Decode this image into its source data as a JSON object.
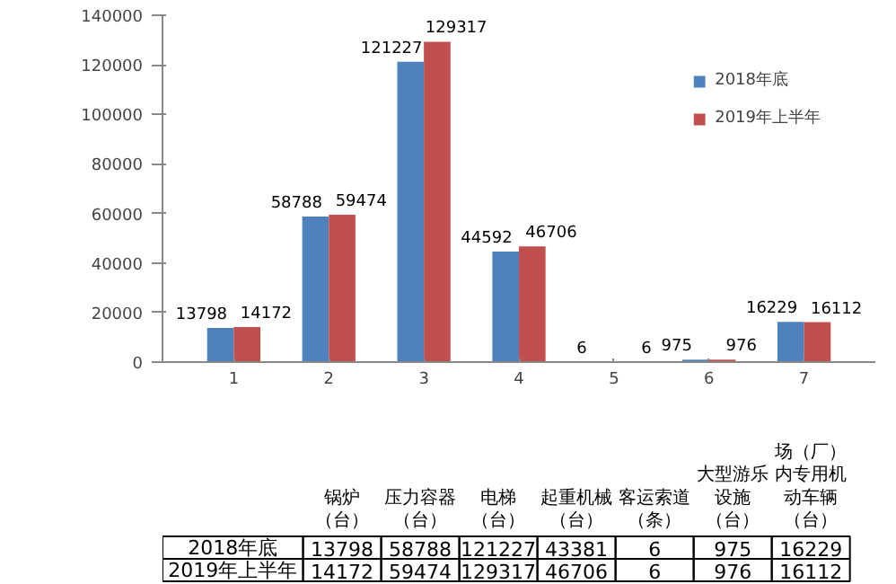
{
  "chart_data": [
    {
      "type": "bar",
      "categories": [
        "1",
        "2",
        "3",
        "4",
        "5",
        "6",
        "7"
      ],
      "ylim": [
        0,
        140000
      ],
      "yticks": [
        0,
        20000,
        40000,
        60000,
        80000,
        100000,
        120000,
        140000
      ],
      "legend": "top right",
      "series": [
        {
          "name": "2018年底",
          "color": "#4f81bd",
          "values": [
            13798,
            58788,
            121227,
            44592,
            6,
            975,
            16229
          ],
          "value_labels": [
            "13798",
            "58788",
            "121227",
            "44592",
            "6",
            "975",
            "16229"
          ]
        },
        {
          "name": "2019年上半年",
          "color": "#c0504d",
          "values": [
            14172,
            59474,
            129317,
            46706,
            6,
            976,
            16112
          ],
          "value_labels": [
            "14172",
            "59474",
            "129317",
            "46706",
            "6",
            "976",
            "16112"
          ]
        }
      ]
    },
    {
      "type": "other",
      "data_labels": true,
      "categories": [
        "锅炉（台）",
        "压力容器（台）",
        "电梯（台）",
        "起重机械（台）",
        "客运索道（条）",
        "大型游乐设施（台）",
        "场（厂）内专用机动车辆（台）"
      ],
      "series": [
        {
          "name": "2018年底",
          "values": [
            13798,
            58788,
            121227,
            43381,
            6,
            975,
            16229
          ]
        },
        {
          "name": "2019年上半年",
          "values": [
            14172,
            59474,
            129317,
            46706,
            6,
            976,
            16112
          ]
        }
      ]
    }
  ]
}
